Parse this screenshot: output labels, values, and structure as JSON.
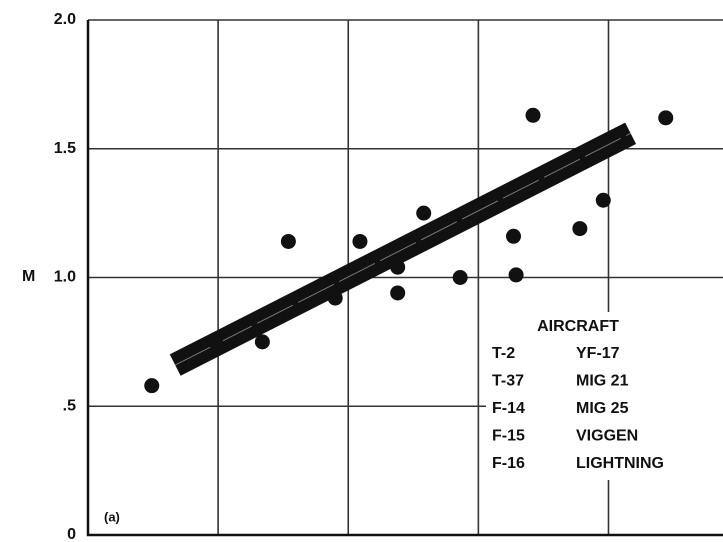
{
  "chart_data": {
    "type": "scatter",
    "ylabel": "M",
    "annotation": "(a)",
    "color": "#111111",
    "x": [
      0.49,
      0.98,
      1.34,
      1.54,
      1.9,
      2.09,
      2.38,
      2.38,
      2.58,
      2.86,
      3.27,
      3.29,
      3.42,
      3.78,
      3.96,
      4.44
    ],
    "values": [
      0.58,
      0.75,
      0.75,
      1.14,
      0.92,
      1.14,
      1.04,
      0.94,
      1.25,
      1.0,
      1.16,
      1.01,
      1.63,
      1.19,
      1.3,
      1.62
    ],
    "trend": {
      "x": [
        0.67,
        4.17
      ],
      "y": [
        0.66,
        1.56
      ]
    },
    "xlim": [
      0,
      4.88
    ],
    "xticks": [
      0,
      1,
      2,
      3,
      4
    ],
    "ylim": [
      0,
      2
    ],
    "yticks": [
      0,
      {
        "value": 0.5,
        "label": ".5"
      },
      {
        "value": 1,
        "label": "1.0"
      },
      1.5,
      {
        "value": 2,
        "label": "2.0"
      }
    ],
    "grid": true,
    "legend": {
      "title": "AIRCRAFT",
      "items": [
        [
          "T-2",
          "YF-17"
        ],
        [
          "T-37",
          "MIG 21"
        ],
        [
          "F-14",
          "MIG 25"
        ],
        [
          "F-15",
          "VIGGEN"
        ],
        [
          "F-16",
          "LIGHTNING"
        ]
      ]
    }
  }
}
